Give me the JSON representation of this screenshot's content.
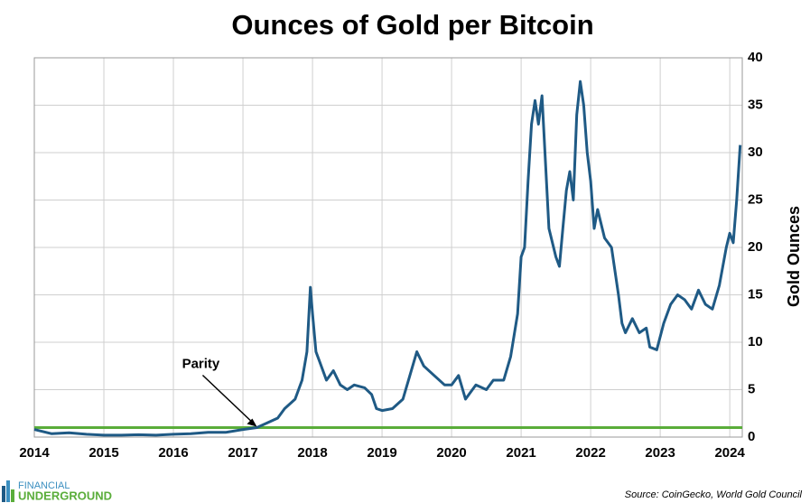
{
  "chart_data": {
    "type": "line",
    "title": "Ounces of Gold per Bitcoin",
    "y_axis_label": "Gold Ounces",
    "source": "Source: CoinGecko, World Gold Council",
    "logo": [
      "FINANCIAL",
      "UNDERGROUND"
    ],
    "xlim": [
      2014,
      2024.18
    ],
    "xticks": [
      2014,
      2015,
      2016,
      2017,
      2018,
      2019,
      2020,
      2021,
      2022,
      2023,
      2024
    ],
    "ylim": [
      0,
      40
    ],
    "yticks": [
      0,
      5,
      10,
      15,
      20,
      25,
      30,
      35,
      40
    ],
    "y_axis_side": "right",
    "grid": true,
    "reference_line": {
      "value": 1,
      "color": "#5aad3a"
    },
    "annotation": {
      "text": "Parity",
      "x": 2017.2,
      "y": 1
    },
    "series": [
      {
        "name": "Ounces of Gold per Bitcoin",
        "color": "#1f5a85",
        "x": [
          2014.0,
          2014.25,
          2014.5,
          2014.75,
          2015.0,
          2015.25,
          2015.5,
          2015.75,
          2016.0,
          2016.25,
          2016.5,
          2016.75,
          2017.0,
          2017.2,
          2017.35,
          2017.5,
          2017.6,
          2017.75,
          2017.85,
          2017.92,
          2017.97,
          2018.0,
          2018.05,
          2018.1,
          2018.2,
          2018.3,
          2018.4,
          2018.5,
          2018.6,
          2018.75,
          2018.85,
          2018.92,
          2019.0,
          2019.15,
          2019.3,
          2019.4,
          2019.5,
          2019.6,
          2019.75,
          2019.9,
          2020.0,
          2020.1,
          2020.2,
          2020.35,
          2020.5,
          2020.6,
          2020.75,
          2020.85,
          2020.95,
          2021.0,
          2021.05,
          2021.1,
          2021.15,
          2021.2,
          2021.25,
          2021.3,
          2021.4,
          2021.5,
          2021.55,
          2021.6,
          2021.65,
          2021.7,
          2021.75,
          2021.8,
          2021.85,
          2021.9,
          2021.95,
          2022.0,
          2022.05,
          2022.1,
          2022.2,
          2022.3,
          2022.4,
          2022.45,
          2022.5,
          2022.6,
          2022.7,
          2022.8,
          2022.85,
          2022.95,
          2023.05,
          2023.15,
          2023.25,
          2023.35,
          2023.45,
          2023.55,
          2023.65,
          2023.75,
          2023.85,
          2023.95,
          2024.0,
          2024.05,
          2024.1,
          2024.15
        ],
        "values": [
          0.8,
          0.35,
          0.45,
          0.3,
          0.2,
          0.2,
          0.25,
          0.2,
          0.3,
          0.35,
          0.5,
          0.5,
          0.8,
          1.0,
          1.5,
          2.0,
          3.0,
          4.0,
          6.0,
          9,
          15.8,
          13,
          9,
          8,
          6,
          7,
          5.5,
          5.0,
          5.5,
          5.2,
          4.5,
          3.0,
          2.8,
          3.0,
          4.0,
          6.5,
          9.0,
          7.5,
          6.5,
          5.5,
          5.5,
          6.5,
          4.0,
          5.5,
          5.0,
          6.0,
          6.0,
          8.5,
          13,
          19,
          20,
          27,
          33,
          35.5,
          33,
          36,
          22,
          19,
          18,
          22,
          26,
          28,
          25,
          34,
          37.5,
          35,
          30,
          27,
          22,
          24,
          21,
          20,
          15,
          12,
          11,
          12.5,
          11,
          11.5,
          9.5,
          9.2,
          12,
          14,
          15,
          14.5,
          13.5,
          15.5,
          14,
          13.5,
          16,
          20,
          21.5,
          20.5,
          25,
          30.8
        ]
      }
    ]
  }
}
